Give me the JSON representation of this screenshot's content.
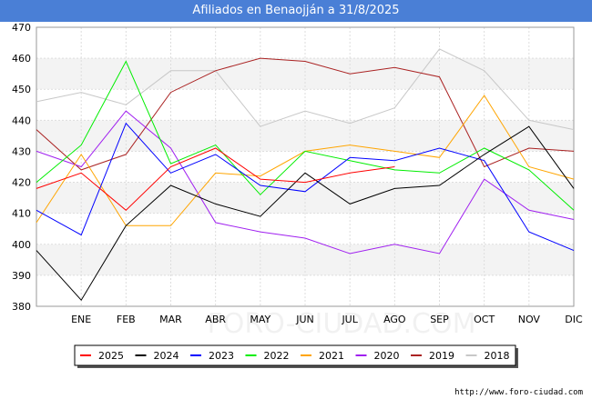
{
  "chart_data": {
    "type": "line",
    "title": "Afiliados en Benaojján a 31/8/2025",
    "categories": [
      "",
      "ENE",
      "FEB",
      "MAR",
      "ABR",
      "MAY",
      "JUN",
      "JUL",
      "AGO",
      "SEP",
      "OCT",
      "NOV",
      "DIC"
    ],
    "ylim": [
      380,
      470
    ],
    "yticks": [
      380,
      390,
      400,
      410,
      420,
      430,
      440,
      450,
      460,
      470
    ],
    "grid": true,
    "legend": "bottom",
    "watermark": "FORO-CIUDAD.COM",
    "series": [
      {
        "name": "2025",
        "color": "#ff0000",
        "values": [
          418,
          423,
          411,
          425,
          431,
          421,
          420,
          423,
          425,
          null,
          null,
          null,
          null
        ]
      },
      {
        "name": "2024",
        "color": "#000000",
        "values": [
          398,
          382,
          406,
          419,
          413,
          409,
          423,
          413,
          418,
          419,
          429,
          438,
          418
        ]
      },
      {
        "name": "2023",
        "color": "#0000ff",
        "values": [
          411,
          403,
          439,
          423,
          429,
          419,
          417,
          428,
          427,
          431,
          427,
          404,
          398
        ]
      },
      {
        "name": "2022",
        "color": "#00ee00",
        "values": [
          420,
          432,
          459,
          426,
          432,
          416,
          430,
          427,
          424,
          423,
          431,
          424,
          411
        ]
      },
      {
        "name": "2021",
        "color": "#ffa500",
        "values": [
          407,
          429,
          406,
          406,
          423,
          422,
          430,
          432,
          430,
          428,
          448,
          425,
          421
        ]
      },
      {
        "name": "2020",
        "color": "#a020f0",
        "values": [
          430,
          425,
          443,
          431,
          407,
          404,
          402,
          397,
          400,
          397,
          421,
          411,
          408
        ]
      },
      {
        "name": "2019",
        "color": "#aa2222",
        "values": [
          437,
          424,
          429,
          449,
          456,
          460,
          459,
          455,
          457,
          454,
          425,
          431,
          430
        ]
      },
      {
        "name": "2018",
        "color": "#c8c8c8",
        "values": [
          446,
          449,
          445,
          456,
          456,
          438,
          443,
          439,
          444,
          463,
          456,
          440,
          437
        ]
      }
    ]
  },
  "footer": {
    "url": "http://www.foro-ciudad.com"
  }
}
